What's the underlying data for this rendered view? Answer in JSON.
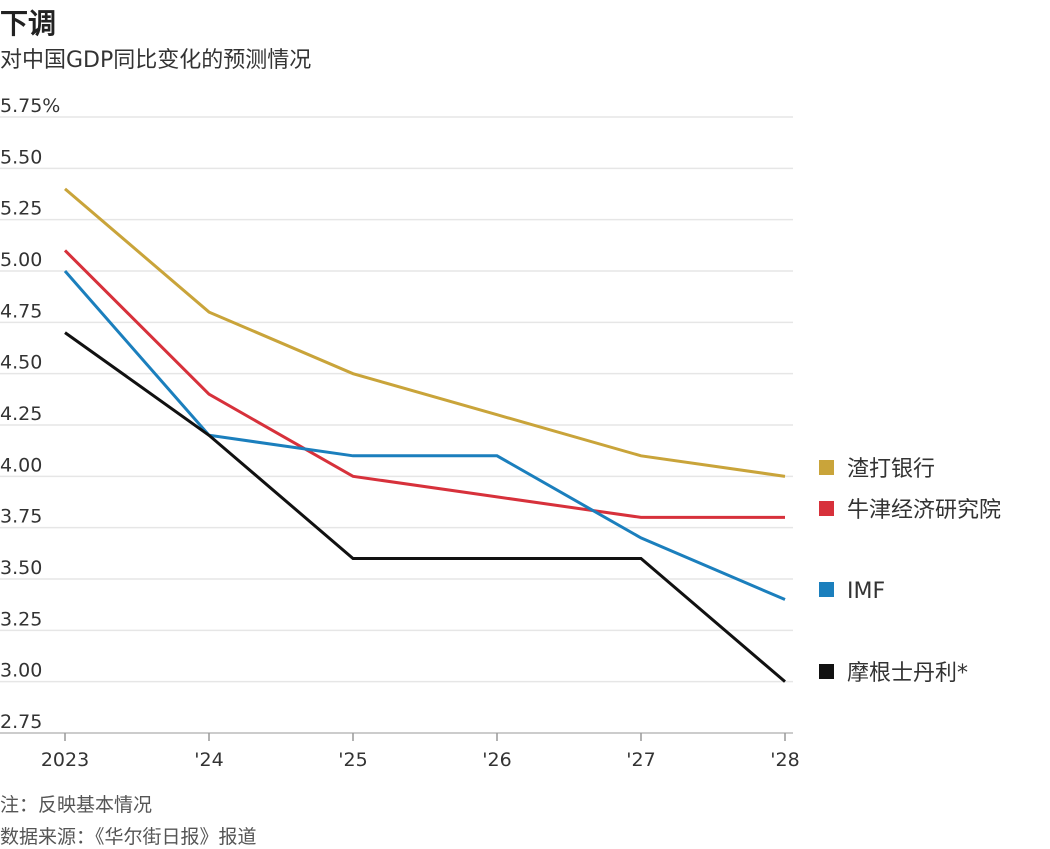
{
  "header": {
    "title": "下调",
    "subtitle": "对中国GDP同比变化的预测情况"
  },
  "notes": {
    "note": "注：反映基本情况",
    "source": "数据来源：《华尔街日报》报道"
  },
  "chart_data": {
    "type": "line",
    "x": [
      "2023",
      "'24",
      "'25",
      "'26",
      "'27",
      "'28"
    ],
    "yticks": [
      "5.75%",
      "5.50",
      "5.25",
      "5.00",
      "4.75",
      "4.50",
      "4.25",
      "4.00",
      "3.75",
      "3.50",
      "3.25",
      "3.00",
      "2.75"
    ],
    "ylim": [
      2.75,
      5.75
    ],
    "grid": true,
    "legend_placement": "right",
    "series": [
      {
        "name": "渣打银行",
        "color": "#c9a43a",
        "values": [
          5.4,
          4.8,
          4.5,
          4.3,
          4.1,
          4.0
        ]
      },
      {
        "name": "牛津经济研究院",
        "color": "#d7313b",
        "values": [
          5.1,
          4.4,
          4.0,
          3.9,
          3.8,
          3.8
        ]
      },
      {
        "name": "IMF",
        "color": "#1b7fbd",
        "values": [
          5.0,
          4.2,
          4.1,
          4.1,
          3.7,
          3.4
        ]
      },
      {
        "name": "摩根士丹利*",
        "color": "#111111",
        "values": [
          4.7,
          4.2,
          3.6,
          3.6,
          3.6,
          3.0
        ]
      }
    ]
  }
}
